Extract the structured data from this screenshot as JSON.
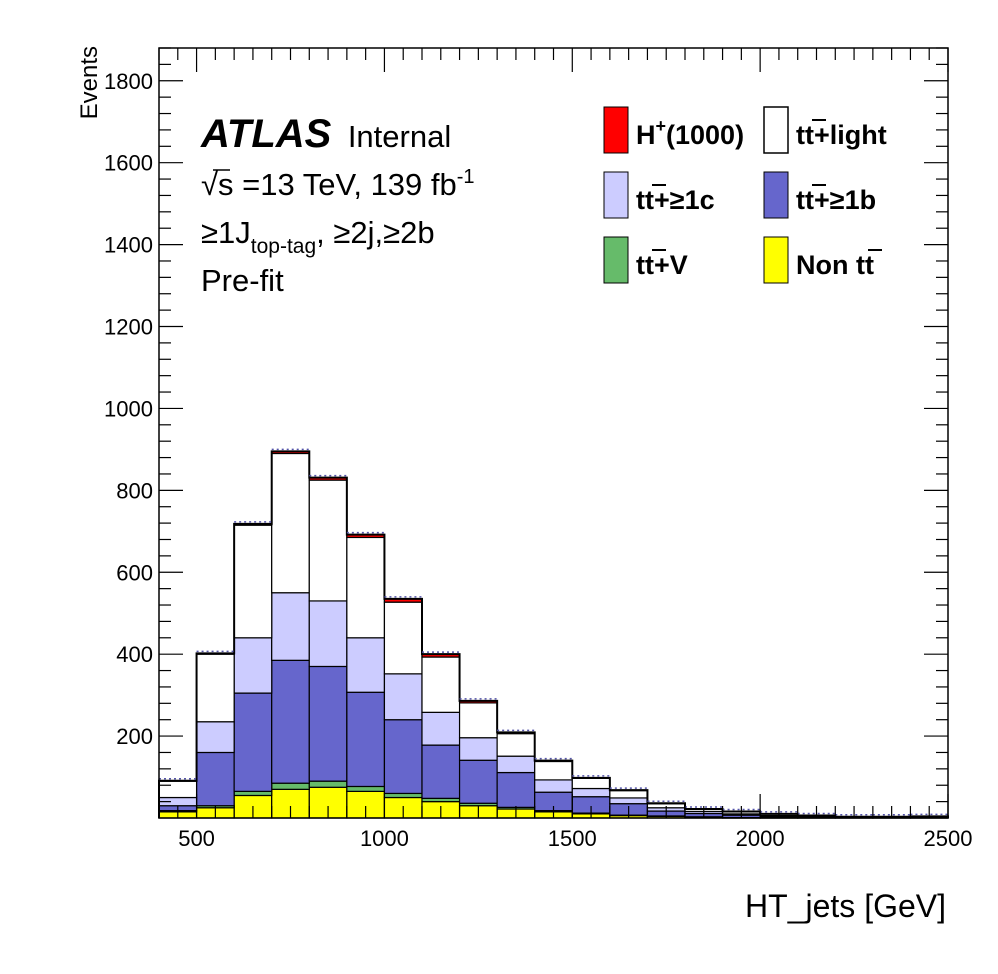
{
  "chart_data": {
    "type": "bar",
    "subtype": "stacked-histogram",
    "bin_edges": [
      400,
      500,
      600,
      700,
      800,
      900,
      1000,
      1100,
      1200,
      1300,
      1400,
      1500,
      1600,
      1700,
      1800,
      1900,
      2000,
      2100,
      2200,
      2300,
      2400,
      2500
    ],
    "xlim": [
      400,
      2500
    ],
    "ylim": [
      0,
      1880
    ],
    "xticks": [
      "500",
      "1000",
      "1500",
      "2000",
      "2500"
    ],
    "yticks": [
      "200",
      "400",
      "600",
      "800",
      "1000",
      "1200",
      "1400",
      "1600",
      "1800"
    ],
    "xlabel": "HT_jets [GeV]",
    "ylabel": "Events",
    "series": [
      {
        "name": "Non tt̄",
        "color": "#ffff00",
        "values": [
          15,
          25,
          55,
          70,
          75,
          65,
          50,
          40,
          30,
          22,
          15,
          10,
          6,
          4,
          2,
          1,
          1,
          1,
          0,
          0,
          0
        ]
      },
      {
        "name": "tt̄+V",
        "color": "#66bb6a",
        "values": [
          3,
          5,
          10,
          15,
          15,
          12,
          10,
          8,
          6,
          4,
          3,
          2,
          1,
          1,
          1,
          0,
          0,
          0,
          0,
          0,
          0
        ]
      },
      {
        "name": "tt̄+≥1b",
        "color": "#6666cc",
        "values": [
          12,
          130,
          240,
          300,
          280,
          230,
          180,
          130,
          105,
          85,
          45,
          40,
          28,
          12,
          8,
          6,
          3,
          2,
          1,
          1,
          1
        ]
      },
      {
        "name": "tt̄+≥1c",
        "color": "#ccccff",
        "values": [
          20,
          75,
          135,
          165,
          160,
          133,
          112,
          80,
          55,
          40,
          30,
          20,
          14,
          8,
          5,
          3,
          2,
          1,
          1,
          1,
          1
        ]
      },
      {
        "name": "tt̄+light",
        "color": "#ffffff",
        "values": [
          40,
          165,
          275,
          340,
          295,
          245,
          175,
          135,
          85,
          55,
          45,
          25,
          18,
          10,
          6,
          6,
          4,
          2,
          1,
          1,
          2
        ]
      },
      {
        "name": "H⁺(1000)",
        "color": "#ff0000",
        "values": [
          1,
          2,
          3,
          5,
          6,
          7,
          8,
          7,
          5,
          3,
          2,
          1,
          1,
          1,
          0,
          0,
          0,
          0,
          0,
          0,
          0
        ]
      }
    ],
    "title": "ATLAS Internal",
    "legend_position": "top-right"
  },
  "text": {
    "atlas": "ATLAS",
    "internal": "Internal",
    "sqrt": "√s",
    "energy": " =13 TeV, 139 fb",
    "lumi_sup": "-1",
    "sel_a": "≥1J",
    "sel_sub": "top-tag",
    "sel_b": ", ≥2j,≥2b",
    "prefit": "Pre-fit"
  },
  "legend": {
    "hplus": "H",
    "hplus_sup": "+",
    "hplus_mass": "(1000)",
    "ttlight": "tt+light",
    "tt1c": "tt+≥1c",
    "tt1b": "tt+≥1b",
    "ttv": "tt+V",
    "nontt": "Non tt"
  }
}
